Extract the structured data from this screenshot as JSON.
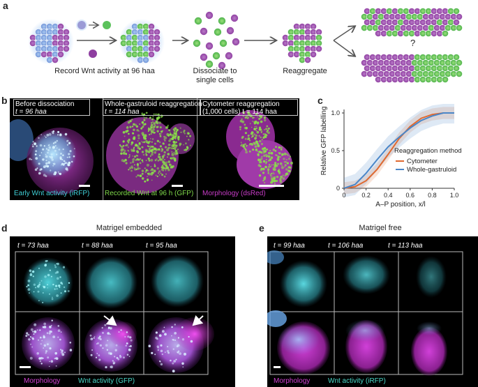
{
  "panels": {
    "a": {
      "label": "a",
      "captions": {
        "record": "Record Wnt activity at 96 haa",
        "dissociate_1": "Dissociate to",
        "dissociate_2": "single cells",
        "reaggregate": "Reaggregate",
        "question": "?"
      }
    },
    "b": {
      "label": "b",
      "images": [
        {
          "title": "Before dissociation",
          "time": "t = 96 haa"
        },
        {
          "title": "Whole-gastruloid reaggregation",
          "time": "t = 114 haa"
        },
        {
          "title": "Cytometer reaggregation",
          "time2": "(1,000 cells) t = 114 haa"
        }
      ],
      "legend": {
        "early": "Early Wnt activity (iRFP)",
        "recorded": "Recorded Wnt at 96 h (GFP)",
        "morph": "Morphology (dsRed)"
      },
      "colors": {
        "cyan": "#40d0d8",
        "green": "#7fd84a",
        "magenta": "#c83cc8"
      }
    },
    "c": {
      "label": "c"
    },
    "d": {
      "label": "d",
      "title": "Matrigel embedded",
      "times": [
        "t = 73 haa",
        "t = 88 haa",
        "t = 95 haa"
      ],
      "legend_morph": "Morphology",
      "legend_wnt": "Wnt activity (GFP)"
    },
    "e": {
      "label": "e",
      "title": "Matrigel free",
      "times": [
        "t = 99 haa",
        "t = 106 haa",
        "t = 113 haa"
      ],
      "legend_morph": "Morphology",
      "legend_wnt": "Wnt activity (iRFP)"
    }
  },
  "chart_data": {
    "type": "line",
    "ylabel": "Relative GFP labelling",
    "xlabel": "A–P position, x/l",
    "xlim": [
      0,
      1
    ],
    "ylim": [
      0,
      1
    ],
    "xticks": [
      "0",
      "0.2",
      "0.4",
      "0.6",
      "0.8",
      "1.0"
    ],
    "yticks": [
      "0",
      "0.5",
      "1.0"
    ],
    "legend_title": "Reaggregation method",
    "series": [
      {
        "name": "Cytometer",
        "color": "#e0692f",
        "x": [
          0,
          0.1,
          0.2,
          0.3,
          0.4,
          0.5,
          0.6,
          0.7,
          0.8,
          0.9,
          1.0
        ],
        "y": [
          0,
          0.02,
          0.1,
          0.25,
          0.45,
          0.66,
          0.82,
          0.93,
          0.98,
          1.0,
          1.0
        ]
      },
      {
        "name": "Whole-gastruloid",
        "color": "#4a86c8",
        "x": [
          0,
          0.1,
          0.2,
          0.3,
          0.4,
          0.5,
          0.6,
          0.7,
          0.8,
          0.9,
          1.0
        ],
        "y": [
          0,
          0.05,
          0.2,
          0.38,
          0.55,
          0.68,
          0.8,
          0.9,
          0.96,
          1.0,
          1.0
        ]
      }
    ]
  }
}
